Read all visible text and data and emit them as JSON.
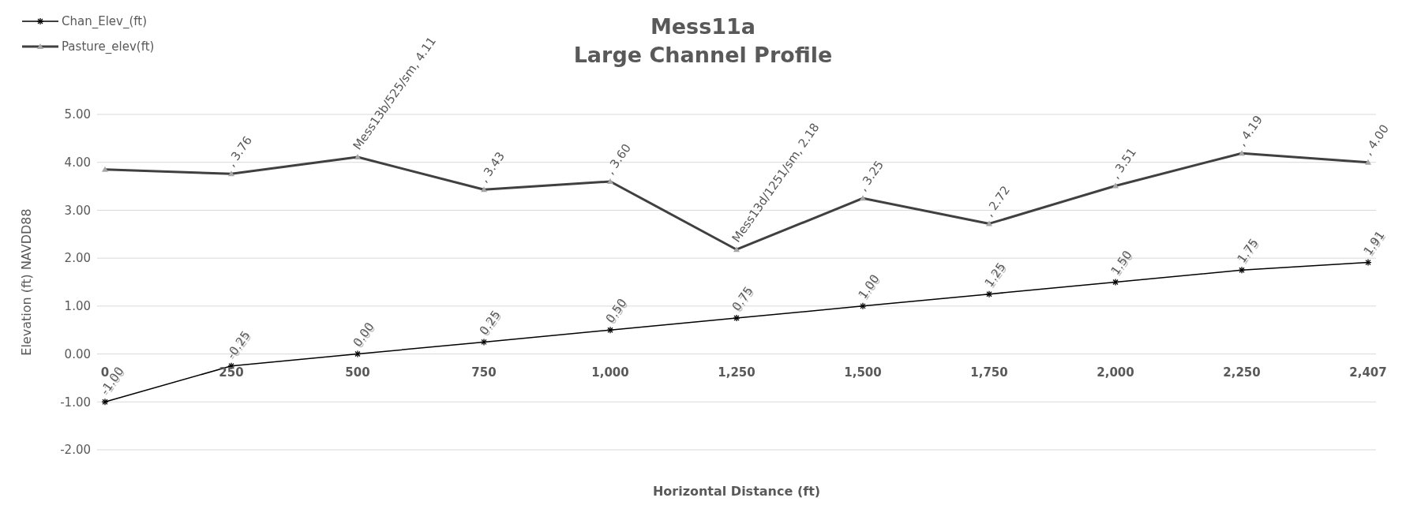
{
  "chart_data": {
    "type": "line",
    "title": "Mess11a",
    "subtitle": "Large Channel Profile",
    "xlabel": "Horizontal Distance (ft)",
    "ylabel": "Elevation (ft) NAVDD88",
    "categories": [
      "0",
      "250",
      "500",
      "750",
      "1,000",
      "1,250",
      "1,500",
      "1,750",
      "2,000",
      "2,250",
      "2,407"
    ],
    "series": [
      {
        "name": "Chan_Elev_(ft)",
        "color": "#000000",
        "marker": "cross",
        "values": [
          -1.0,
          -0.25,
          0.0,
          0.25,
          0.5,
          0.75,
          1.0,
          1.25,
          1.5,
          1.75,
          1.91
        ],
        "value_labels": [
          "-1.00",
          "-0.25",
          "0.00",
          "0.25",
          "0.50",
          "0.75",
          "1.00",
          "1.25",
          "1.50",
          "1.75",
          "1.91"
        ]
      },
      {
        "name": "Pasture_elev(ft)",
        "color": "#404040",
        "marker": "triangle",
        "values": [
          3.85,
          3.76,
          4.11,
          3.43,
          3.6,
          2.18,
          3.25,
          2.72,
          3.51,
          4.19,
          4.0
        ],
        "value_labels": [
          null,
          ", 3.76",
          "Mess13b/525/sm, 4.11",
          ", 3.43",
          ", 3.60",
          "Mess13d/1251/sm, 2.18",
          ", 3.25",
          ", 2.72",
          ", 3.51",
          ", 4.19",
          ", 4.00"
        ]
      }
    ],
    "ylim": [
      -2,
      5
    ],
    "yticks": [
      {
        "value": -2,
        "label": "-2.00"
      },
      {
        "value": -1,
        "label": "-1.00"
      },
      {
        "value": 0,
        "label": "0.00"
      },
      {
        "value": 1,
        "label": "1.00"
      },
      {
        "value": 2,
        "label": "2.00"
      },
      {
        "value": 3,
        "label": "3.00"
      },
      {
        "value": 4,
        "label": "4.00"
      },
      {
        "value": 5,
        "label": "5.00"
      }
    ],
    "grid": "y",
    "legend": "top left"
  }
}
